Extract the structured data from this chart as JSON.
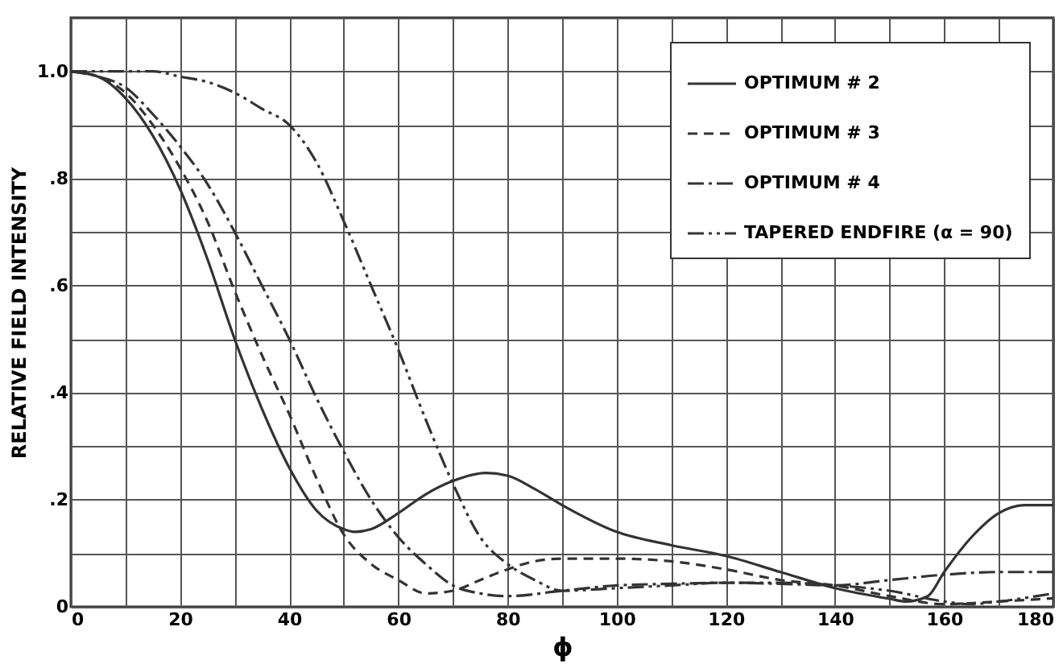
{
  "chart_data": {
    "type": "line",
    "xlabel": "ϕ",
    "ylabel": "RELATIVE FIELD INTENSITY",
    "xlim": [
      0,
      180
    ],
    "ylim": [
      0,
      1.1
    ],
    "xticks": [
      0,
      {
        "value": 10,
        "label": null
      },
      20,
      {
        "value": 30,
        "label": null
      },
      40,
      {
        "value": 50,
        "label": null
      },
      60,
      {
        "value": 70,
        "label": null
      },
      80,
      {
        "value": 90,
        "label": null
      },
      100,
      {
        "value": 110,
        "label": null
      },
      120,
      {
        "value": 130,
        "label": null
      },
      140,
      {
        "value": 150,
        "label": null
      },
      160,
      {
        "value": 170,
        "label": null
      },
      180
    ],
    "yticks": [
      0,
      {
        "value": 0.1,
        "label": null
      },
      {
        "value": 0.2,
        "label": ".2"
      },
      {
        "value": 0.3,
        "label": null
      },
      {
        "value": 0.4,
        "label": ".4"
      },
      {
        "value": 0.5,
        "label": null
      },
      {
        "value": 0.6,
        "label": ".6"
      },
      {
        "value": 0.7,
        "label": null
      },
      {
        "value": 0.8,
        "label": ".8"
      },
      {
        "value": 0.9,
        "label": null
      },
      {
        "value": 1.0,
        "label": "1.0"
      },
      {
        "value": 1.1,
        "label": null
      }
    ],
    "grid": true,
    "legend": "top right",
    "marker": "none",
    "series": [
      {
        "name": "OPTIMUM # 2",
        "color": "#333333",
        "line_style": "solid",
        "x": [
          0,
          5,
          10,
          15,
          20,
          25,
          30,
          35,
          40,
          45,
          50,
          52,
          55,
          60,
          65,
          70,
          76,
          80,
          85,
          90,
          100,
          110,
          120,
          130,
          140,
          150,
          153,
          157,
          160,
          165,
          170,
          175,
          180
        ],
        "values": [
          1.0,
          0.99,
          0.95,
          0.88,
          0.78,
          0.65,
          0.5,
          0.37,
          0.26,
          0.18,
          0.145,
          0.14,
          0.145,
          0.175,
          0.21,
          0.235,
          0.25,
          0.245,
          0.22,
          0.19,
          0.14,
          0.115,
          0.095,
          0.065,
          0.035,
          0.015,
          0.01,
          0.02,
          0.065,
          0.13,
          0.175,
          0.19,
          0.19
        ]
      },
      {
        "name": "OPTIMUM # 3",
        "color": "#333333",
        "line_style": "dashed",
        "x": [
          0,
          5,
          10,
          15,
          20,
          25,
          30,
          35,
          40,
          45,
          50,
          55,
          60,
          65,
          70,
          75,
          80,
          85,
          90,
          100,
          110,
          120,
          130,
          140,
          150,
          160,
          170,
          180
        ],
        "values": [
          1.0,
          0.99,
          0.96,
          0.9,
          0.82,
          0.72,
          0.59,
          0.47,
          0.36,
          0.24,
          0.135,
          0.08,
          0.05,
          0.025,
          0.03,
          0.05,
          0.07,
          0.085,
          0.09,
          0.09,
          0.085,
          0.07,
          0.05,
          0.04,
          0.02,
          0.005,
          0.01,
          0.016
        ]
      },
      {
        "name": "OPTIMUM # 4",
        "color": "#333333",
        "line_style": "dashdot",
        "x": [
          0,
          5,
          10,
          15,
          20,
          25,
          30,
          35,
          40,
          45,
          50,
          55,
          60,
          65,
          70,
          75,
          80,
          90,
          100,
          110,
          120,
          130,
          140,
          150,
          160,
          170,
          180
        ],
        "values": [
          1.0,
          0.99,
          0.97,
          0.92,
          0.86,
          0.79,
          0.7,
          0.6,
          0.5,
          0.39,
          0.29,
          0.2,
          0.13,
          0.08,
          0.04,
          0.025,
          0.02,
          0.03,
          0.04,
          0.043,
          0.045,
          0.043,
          0.04,
          0.05,
          0.06,
          0.065,
          0.065
        ]
      },
      {
        "name": "TAPERED ENDFIRE (α = 90)",
        "color": "#333333",
        "line_style": "dashdotdot",
        "x": [
          0,
          10,
          15,
          20,
          25,
          30,
          35,
          40,
          45,
          50,
          55,
          60,
          65,
          70,
          75,
          80,
          85,
          90,
          100,
          110,
          120,
          130,
          140,
          150,
          160,
          165,
          170,
          180
        ],
        "values": [
          1.0,
          1.0,
          1.0,
          0.99,
          0.98,
          0.96,
          0.93,
          0.9,
          0.83,
          0.72,
          0.6,
          0.48,
          0.35,
          0.23,
          0.13,
          0.08,
          0.05,
          0.03,
          0.035,
          0.04,
          0.045,
          0.045,
          0.04,
          0.03,
          0.01,
          0.005,
          0.01,
          0.025
        ]
      }
    ]
  }
}
